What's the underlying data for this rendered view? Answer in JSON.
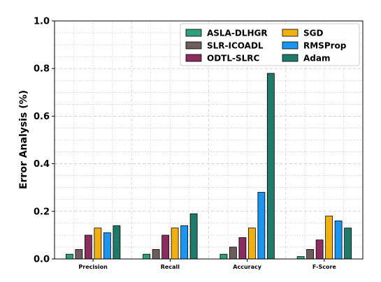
{
  "chart_data": {
    "type": "bar",
    "categories": [
      "Precision",
      "Recall",
      "Accuracy",
      "F-Score"
    ],
    "series": [
      {
        "name": "ASLA-DLHGR",
        "color": "#2e9e7b",
        "values": [
          0.02,
          0.02,
          0.02,
          0.01
        ]
      },
      {
        "name": "SLR-ICOADL",
        "color": "#6e5d5d",
        "values": [
          0.04,
          0.04,
          0.05,
          0.04
        ]
      },
      {
        "name": "ODTL-SLRC",
        "color": "#8b2d5e",
        "values": [
          0.1,
          0.1,
          0.09,
          0.08
        ]
      },
      {
        "name": "SGD",
        "color": "#f0b012",
        "values": [
          0.13,
          0.13,
          0.13,
          0.18
        ]
      },
      {
        "name": "RMSProp",
        "color": "#1a95f0",
        "values": [
          0.11,
          0.14,
          0.28,
          0.16
        ]
      },
      {
        "name": "Adam",
        "color": "#1f7a6a",
        "values": [
          0.14,
          0.19,
          0.78,
          0.13
        ]
      }
    ],
    "title": "",
    "xlabel": "",
    "ylabel": "Error Analysis (%)",
    "ylim": [
      0.0,
      1.0
    ],
    "yticks": [
      "0.0",
      "0.2",
      "0.4",
      "0.6",
      "0.8",
      "1.0"
    ],
    "grid": true,
    "legend_position": "top-right",
    "legend_columns": 2
  }
}
